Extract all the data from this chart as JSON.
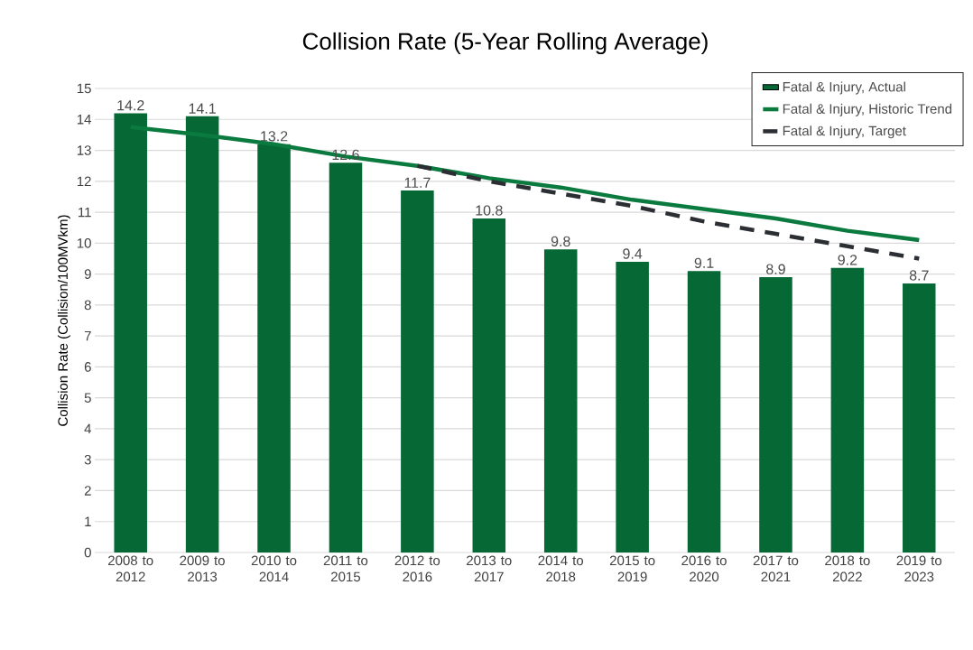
{
  "chart_data": {
    "type": "bar",
    "title": "Collision Rate (5-Year Rolling Average)",
    "ylabel": "Collision Rate (Collision/100MVkm)",
    "categories": [
      "2008 to 2012",
      "2009 to 2013",
      "2010 to 2014",
      "2011 to 2015",
      "2012 to 2016",
      "2013 to 2017",
      "2014 to 2018",
      "2015 to 2019",
      "2016 to 2020",
      "2017 to 2021",
      "2018 to 2022",
      "2019 to 2023"
    ],
    "series": [
      {
        "name": "Fatal & Injury, Actual",
        "color": "#056835",
        "values": [
          14.2,
          14.1,
          13.2,
          12.6,
          11.7,
          10.8,
          9.8,
          9.4,
          9.1,
          8.9,
          9.2,
          8.7
        ],
        "value_labels": [
          "14.2",
          "14.1",
          "13.2",
          "12.6",
          "11.7",
          "10.8",
          "9.8",
          "9.4",
          "9.1",
          "8.9",
          "9.2",
          "8.7"
        ]
      },
      {
        "name": "Fatal & Injury, Historic Trend",
        "type": "line",
        "line_style": "solid",
        "color": "#0b7a3f",
        "values": [
          13.75,
          13.5,
          13.2,
          12.8,
          12.5,
          12.1,
          11.8,
          11.4,
          11.1,
          10.8,
          10.4,
          10.1
        ]
      },
      {
        "name": "Fatal & Injury, Target",
        "type": "line",
        "line_style": "dashed",
        "color": "#2b2f33",
        "values": [
          null,
          null,
          null,
          null,
          12.5,
          12.0,
          11.6,
          11.2,
          10.7,
          10.3,
          9.9,
          9.5
        ]
      }
    ],
    "ylim": [
      0,
      15
    ],
    "yticks": [
      0,
      1,
      2,
      3,
      4,
      5,
      6,
      7,
      8,
      9,
      10,
      11,
      12,
      13,
      14,
      15
    ],
    "grid": "y",
    "legend": "top right"
  }
}
